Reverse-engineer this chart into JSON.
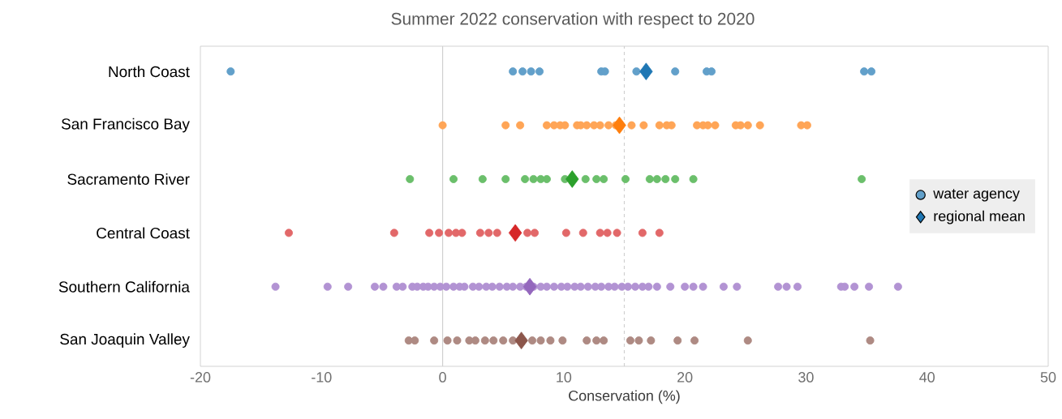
{
  "chart_data": {
    "type": "scatter",
    "orientation": "horizontal",
    "title": "Summer 2022 conservation with respect to 2020",
    "xlabel": "Conservation (%)",
    "categories": [
      "North Coast",
      "San Francisco Bay",
      "Sacramento River",
      "Central Coast",
      "Southern California",
      "San Joaquin Valley"
    ],
    "xlim": [
      -20,
      50
    ],
    "xticks": [
      -20,
      -10,
      0,
      10,
      20,
      30,
      40,
      50
    ],
    "grid": false,
    "legend": "right",
    "ref_lines": [
      {
        "axis": "x",
        "value": 0,
        "color": "#d0d0d0",
        "line_style": "solid"
      },
      {
        "axis": "x",
        "value": 15,
        "color": "#d0d0d0",
        "line_style": "dashed"
      }
    ],
    "series": [
      {
        "name": "water agency",
        "marker": "circle",
        "x": [
          "North Coast",
          "North Coast",
          "North Coast",
          "North Coast",
          "North Coast",
          "North Coast",
          "North Coast",
          "North Coast",
          "North Coast",
          "North Coast",
          "North Coast",
          "North Coast",
          "North Coast",
          "San Francisco Bay",
          "San Francisco Bay",
          "San Francisco Bay",
          "San Francisco Bay",
          "San Francisco Bay",
          "San Francisco Bay",
          "San Francisco Bay",
          "San Francisco Bay",
          "San Francisco Bay",
          "San Francisco Bay",
          "San Francisco Bay",
          "San Francisco Bay",
          "San Francisco Bay",
          "San Francisco Bay",
          "San Francisco Bay",
          "San Francisco Bay",
          "San Francisco Bay",
          "San Francisco Bay",
          "San Francisco Bay",
          "San Francisco Bay",
          "San Francisco Bay",
          "San Francisco Bay",
          "San Francisco Bay",
          "San Francisco Bay",
          "San Francisco Bay",
          "San Francisco Bay",
          "San Francisco Bay",
          "San Francisco Bay",
          "San Francisco Bay",
          "Sacramento River",
          "Sacramento River",
          "Sacramento River",
          "Sacramento River",
          "Sacramento River",
          "Sacramento River",
          "Sacramento River",
          "Sacramento River",
          "Sacramento River",
          "Sacramento River",
          "Sacramento River",
          "Sacramento River",
          "Sacramento River",
          "Sacramento River",
          "Sacramento River",
          "Sacramento River",
          "Sacramento River",
          "Sacramento River",
          "Sacramento River",
          "Central Coast",
          "Central Coast",
          "Central Coast",
          "Central Coast",
          "Central Coast",
          "Central Coast",
          "Central Coast",
          "Central Coast",
          "Central Coast",
          "Central Coast",
          "Central Coast",
          "Central Coast",
          "Central Coast",
          "Central Coast",
          "Central Coast",
          "Central Coast",
          "Central Coast",
          "Central Coast",
          "Central Coast",
          "Southern California",
          "Southern California",
          "Southern California",
          "Southern California",
          "Southern California",
          "Southern California",
          "Southern California",
          "Southern California",
          "Southern California",
          "Southern California",
          "Southern California",
          "Southern California",
          "Southern California",
          "Southern California",
          "Southern California",
          "Southern California",
          "Southern California",
          "Southern California",
          "Southern California",
          "Southern California",
          "Southern California",
          "Southern California",
          "Southern California",
          "Southern California",
          "Southern California",
          "Southern California",
          "Southern California",
          "Southern California",
          "Southern California",
          "Southern California",
          "Southern California",
          "Southern California",
          "Southern California",
          "Southern California",
          "Southern California",
          "Southern California",
          "Southern California",
          "Southern California",
          "Southern California",
          "Southern California",
          "Southern California",
          "Southern California",
          "Southern California",
          "Southern California",
          "Southern California",
          "Southern California",
          "Southern California",
          "Southern California",
          "Southern California",
          "Southern California",
          "Southern California",
          "Southern California",
          "Southern California",
          "Southern California",
          "Southern California",
          "Southern California",
          "Southern California",
          "Southern California",
          "Southern California",
          "San Joaquin Valley",
          "San Joaquin Valley",
          "San Joaquin Valley",
          "San Joaquin Valley",
          "San Joaquin Valley",
          "San Joaquin Valley",
          "San Joaquin Valley",
          "San Joaquin Valley",
          "San Joaquin Valley",
          "San Joaquin Valley",
          "San Joaquin Valley",
          "San Joaquin Valley",
          "San Joaquin Valley",
          "San Joaquin Valley",
          "San Joaquin Valley",
          "San Joaquin Valley",
          "San Joaquin Valley",
          "San Joaquin Valley",
          "San Joaquin Valley",
          "San Joaquin Valley",
          "San Joaquin Valley",
          "San Joaquin Valley",
          "San Joaquin Valley",
          "San Joaquin Valley",
          "San Joaquin Valley"
        ],
        "values": [
          -17.5,
          5.8,
          6.6,
          7.3,
          8.0,
          13.1,
          13.4,
          16.0,
          19.2,
          21.8,
          22.2,
          34.8,
          35.4,
          0.0,
          5.2,
          6.4,
          8.6,
          9.2,
          9.7,
          10.1,
          11.1,
          11.4,
          11.9,
          12.5,
          13.0,
          13.7,
          14.3,
          15.6,
          16.6,
          17.9,
          18.5,
          18.9,
          21.0,
          21.5,
          21.9,
          22.5,
          24.2,
          24.6,
          25.2,
          26.2,
          29.6,
          30.1,
          -2.7,
          0.9,
          3.3,
          5.2,
          6.8,
          7.5,
          8.1,
          8.6,
          10.1,
          11.8,
          12.7,
          13.3,
          15.1,
          17.1,
          17.7,
          18.4,
          19.2,
          20.7,
          34.6,
          -12.7,
          -4.0,
          -1.1,
          -0.3,
          0.5,
          1.1,
          1.6,
          3.1,
          3.8,
          4.5,
          7.0,
          7.6,
          10.2,
          11.6,
          13.0,
          13.6,
          14.4,
          16.5,
          17.9,
          -13.8,
          -9.5,
          -7.8,
          -5.6,
          -4.9,
          -3.8,
          -3.3,
          -2.5,
          -2.1,
          -1.6,
          -1.2,
          -0.7,
          -0.2,
          0.3,
          0.9,
          1.4,
          1.8,
          2.5,
          3.0,
          3.6,
          4.1,
          4.7,
          5.3,
          5.8,
          6.4,
          6.9,
          7.5,
          8.1,
          8.6,
          9.2,
          9.8,
          10.3,
          10.9,
          11.4,
          12.0,
          12.6,
          13.1,
          13.7,
          14.2,
          14.8,
          15.3,
          15.9,
          16.5,
          17.0,
          17.7,
          18.8,
          20.0,
          20.7,
          21.5,
          23.2,
          24.3,
          27.7,
          28.4,
          29.3,
          32.9,
          33.2,
          34.0,
          35.2,
          37.6,
          -2.8,
          -2.3,
          -0.7,
          0.4,
          1.2,
          2.2,
          2.7,
          3.5,
          4.2,
          5.0,
          5.8,
          7.4,
          8.1,
          8.9,
          9.9,
          11.9,
          12.7,
          13.3,
          15.5,
          16.2,
          17.2,
          19.4,
          20.8,
          25.2,
          35.3
        ],
        "colors": [
          "#62a0ca",
          "#62a0ca",
          "#62a0ca",
          "#62a0ca",
          "#62a0ca",
          "#62a0ca",
          "#62a0ca",
          "#62a0ca",
          "#62a0ca",
          "#62a0ca",
          "#62a0ca",
          "#62a0ca",
          "#62a0ca",
          "#ffa556",
          "#ffa556",
          "#ffa556",
          "#ffa556",
          "#ffa556",
          "#ffa556",
          "#ffa556",
          "#ffa556",
          "#ffa556",
          "#ffa556",
          "#ffa556",
          "#ffa556",
          "#ffa556",
          "#ffa556",
          "#ffa556",
          "#ffa556",
          "#ffa556",
          "#ffa556",
          "#ffa556",
          "#ffa556",
          "#ffa556",
          "#ffa556",
          "#ffa556",
          "#ffa556",
          "#ffa556",
          "#ffa556",
          "#ffa556",
          "#ffa556",
          "#ffa556",
          "#6bbf6b",
          "#6bbf6b",
          "#6bbf6b",
          "#6bbf6b",
          "#6bbf6b",
          "#6bbf6b",
          "#6bbf6b",
          "#6bbf6b",
          "#6bbf6b",
          "#6bbf6b",
          "#6bbf6b",
          "#6bbf6b",
          "#6bbf6b",
          "#6bbf6b",
          "#6bbf6b",
          "#6bbf6b",
          "#6bbf6b",
          "#6bbf6b",
          "#6bbf6b",
          "#e26869",
          "#e26869",
          "#e26869",
          "#e26869",
          "#e26869",
          "#e26869",
          "#e26869",
          "#e26869",
          "#e26869",
          "#e26869",
          "#e26869",
          "#e26869",
          "#e26869",
          "#e26869",
          "#e26869",
          "#e26869",
          "#e26869",
          "#e26869",
          "#e26869",
          "#b293d3",
          "#b293d3",
          "#b293d3",
          "#b293d3",
          "#b293d3",
          "#b293d3",
          "#b293d3",
          "#b293d3",
          "#b293d3",
          "#b293d3",
          "#b293d3",
          "#b293d3",
          "#b293d3",
          "#b293d3",
          "#b293d3",
          "#b293d3",
          "#b293d3",
          "#b293d3",
          "#b293d3",
          "#b293d3",
          "#b293d3",
          "#b293d3",
          "#b293d3",
          "#b293d3",
          "#b293d3",
          "#b293d3",
          "#b293d3",
          "#b293d3",
          "#b293d3",
          "#b293d3",
          "#b293d3",
          "#b293d3",
          "#b293d3",
          "#b293d3",
          "#b293d3",
          "#b293d3",
          "#b293d3",
          "#b293d3",
          "#b293d3",
          "#b293d3",
          "#b293d3",
          "#b293d3",
          "#b293d3",
          "#b293d3",
          "#b293d3",
          "#b293d3",
          "#b293d3",
          "#b293d3",
          "#b293d3",
          "#b293d3",
          "#b293d3",
          "#b293d3",
          "#b293d3",
          "#b293d3",
          "#b293d3",
          "#b293d3",
          "#b293d3",
          "#b293d3",
          "#b293d3",
          "#ae8a83",
          "#ae8a83",
          "#ae8a83",
          "#ae8a83",
          "#ae8a83",
          "#ae8a83",
          "#ae8a83",
          "#ae8a83",
          "#ae8a83",
          "#ae8a83",
          "#ae8a83",
          "#ae8a83",
          "#ae8a83",
          "#ae8a83",
          "#ae8a83",
          "#ae8a83",
          "#ae8a83",
          "#ae8a83",
          "#ae8a83",
          "#ae8a83",
          "#ae8a83",
          "#ae8a83",
          "#ae8a83",
          "#ae8a83",
          "#ae8a83"
        ]
      },
      {
        "name": "regional mean",
        "marker": "diamond",
        "x": [
          "North Coast",
          "San Francisco Bay",
          "Sacramento River",
          "Central Coast",
          "Southern California",
          "San Joaquin Valley"
        ],
        "values": [
          16.8,
          14.6,
          10.7,
          6.0,
          7.2,
          6.5
        ],
        "colors": [
          "#1f77b4",
          "#ff7f0e",
          "#2ca02c",
          "#d62728",
          "#9467bd",
          "#8c564b"
        ]
      }
    ]
  }
}
